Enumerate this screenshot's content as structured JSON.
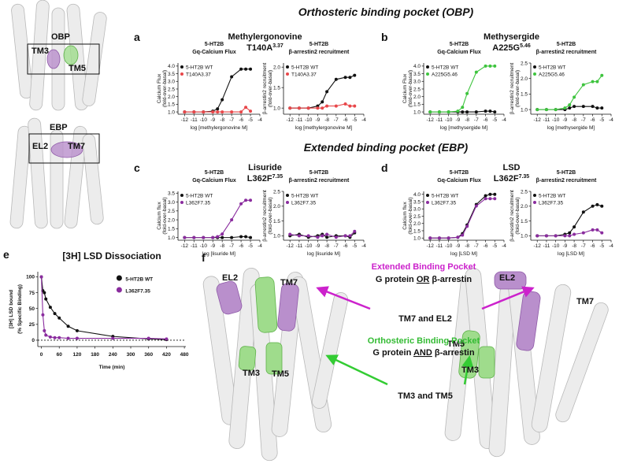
{
  "headings": [
    "Orthosteric binding pocket (OBP)",
    "Extended binding pocket (EBP)"
  ],
  "panel_letters": [
    "a",
    "b",
    "c",
    "d",
    "e",
    "f"
  ],
  "panels": [
    {
      "drug": "Methylergonovine",
      "mutant": {
        "base": "T140A",
        "sup": "3.37"
      }
    },
    {
      "drug": "Methysergide",
      "mutant": {
        "base": "A225G",
        "sup": "5.46"
      }
    },
    {
      "drug": "Lisuride",
      "mutant": {
        "base": "L362F",
        "sup": "7.35"
      }
    },
    {
      "drug": "LSD",
      "mutant": {
        "base": "L362F",
        "sup": "7.35"
      }
    }
  ],
  "overview": {
    "labels": [
      "OBP",
      "TM3",
      "TM5",
      "EBP",
      "EL2",
      "TM7"
    ]
  },
  "structures": {
    "left_labels": [
      "EL2",
      "TM7",
      "TM3",
      "TM5"
    ],
    "right_labels": [
      "EL2",
      "TM7",
      "TM5",
      "TM3"
    ],
    "ebp_title": "Extended Binding Pocket",
    "ebp_text": [
      "G protein ",
      "OR",
      " β-arrestin"
    ],
    "ebp_arrow": "TM7 and EL2",
    "obp_title": "Orthosteric Binding Pocket",
    "obp_text": [
      "G protein ",
      "AND",
      " β-arrestin"
    ],
    "obp_arrow": "TM3 and TM5"
  },
  "chart_data": [
    {
      "type": "line",
      "subtitle": [
        "5-HT2B",
        "Gq-Calcium Flux"
      ],
      "y_label": [
        "Calcium Flux",
        "(fold-over-basal)"
      ],
      "x_label": "log [methylergonovine M]",
      "x": [
        -12,
        -11,
        -10,
        -9,
        -8.5,
        -8,
        -7,
        -6,
        -5.5,
        -5
      ],
      "xlim": [
        -12.7,
        -4
      ],
      "xticks": [
        -12,
        -11,
        -10,
        -9,
        -8,
        -7,
        -6,
        -5,
        -4
      ],
      "ylim": [
        0.85,
        4.2
      ],
      "yticks": [
        {
          "value": 1,
          "label": "1.0"
        },
        1.5,
        {
          "value": 2,
          "label": "2.0"
        },
        2.5,
        {
          "value": 3,
          "label": "3.0"
        },
        3.5,
        {
          "value": 4,
          "label": "4.0"
        }
      ],
      "legend": "upper left",
      "series": [
        {
          "name": "5-HT2B WT",
          "color": "#111111",
          "values": [
            1.0,
            1.0,
            1.0,
            1.05,
            1.2,
            1.8,
            3.3,
            3.8,
            3.8,
            3.8
          ]
        },
        {
          "name": "T140A3.37",
          "color": "#e8474a",
          "values": [
            1.0,
            1.0,
            1.0,
            1.0,
            1.0,
            1.0,
            1.0,
            1.0,
            1.3,
            1.05
          ]
        }
      ]
    },
    {
      "type": "line",
      "subtitle": [
        "5-HT2B",
        "β-arrestin2 recruitment"
      ],
      "y_label": [
        "β-arrestin2 recruitment",
        "(fold-over-basal)"
      ],
      "x_label": "log [methylergonovine M]",
      "x": [
        -12,
        -11,
        -10,
        -9,
        -8.5,
        -8,
        -7,
        -6,
        -5.5,
        -5
      ],
      "xlim": [
        -12.7,
        -4
      ],
      "xticks": [
        -12,
        -11,
        -10,
        -9,
        -8,
        -7,
        -6,
        -5,
        -4
      ],
      "ylim": [
        0.85,
        2.1
      ],
      "yticks": [
        {
          "value": 1,
          "label": "1.0"
        },
        1.5,
        {
          "value": 2,
          "label": "2.0"
        }
      ],
      "legend": "upper left",
      "series": [
        {
          "name": "5-HT2B WT",
          "color": "#111111",
          "values": [
            1.0,
            1.0,
            1.0,
            1.05,
            1.15,
            1.4,
            1.7,
            1.75,
            1.75,
            1.8
          ]
        },
        {
          "name": "T140A3.37",
          "color": "#e8474a",
          "values": [
            1.0,
            1.0,
            1.0,
            1.0,
            1.0,
            1.05,
            1.05,
            1.1,
            1.05,
            1.05
          ]
        }
      ]
    },
    {
      "type": "line",
      "subtitle": [
        "5-HT2B",
        "Gq-Calcium Flux"
      ],
      "y_label": [
        "Calcium Flux",
        "(fold-over-basal)"
      ],
      "x_label": "log [methysergide M]",
      "x": [
        -12,
        -11,
        -10,
        -9,
        -8.5,
        -8,
        -7,
        -6,
        -5.5,
        -5
      ],
      "xlim": [
        -12.7,
        -4
      ],
      "xticks": [
        -12,
        -11,
        -10,
        -9,
        -8,
        -7,
        -6,
        -5,
        -4
      ],
      "ylim": [
        0.85,
        4.2
      ],
      "yticks": [
        {
          "value": 1,
          "label": "1.0"
        },
        1.5,
        {
          "value": 2,
          "label": "2.0"
        },
        2.5,
        {
          "value": 3,
          "label": "3.0"
        },
        3.5,
        {
          "value": 4,
          "label": "4.0"
        }
      ],
      "legend": "upper left",
      "series": [
        {
          "name": "5-HT2B WT",
          "color": "#111111",
          "values": [
            1.0,
            1.0,
            1.0,
            1.0,
            1.0,
            1.0,
            1.0,
            1.05,
            1.05,
            1.0
          ]
        },
        {
          "name": "A225G5.46",
          "color": "#3ec43e",
          "values": [
            1.0,
            1.0,
            1.0,
            1.05,
            1.3,
            2.2,
            3.6,
            4.0,
            4.0,
            4.0
          ]
        }
      ]
    },
    {
      "type": "line",
      "subtitle": [
        "5-HT2B",
        "β-arrestin2 recruitment"
      ],
      "y_label": [
        "β-arrestin2 recruitment",
        "(fold-over-basal)"
      ],
      "x_label": "log [methysergide M]",
      "x": [
        -12,
        -11,
        -10,
        -9,
        -8.5,
        -8,
        -7,
        -6,
        -5.5,
        -5
      ],
      "xlim": [
        -12.7,
        -4
      ],
      "xticks": [
        -12,
        -11,
        -10,
        -9,
        -8,
        -7,
        -6,
        -5,
        -4
      ],
      "ylim": [
        0.85,
        2.5
      ],
      "yticks": [
        {
          "value": 1,
          "label": "1.0"
        },
        1.5,
        {
          "value": 2,
          "label": "2.0"
        },
        2.5
      ],
      "legend": "upper left",
      "series": [
        {
          "name": "5-HT2B WT",
          "color": "#111111",
          "values": [
            1.0,
            1.0,
            1.0,
            1.0,
            1.05,
            1.1,
            1.1,
            1.1,
            1.05,
            1.05
          ]
        },
        {
          "name": "A225G5.46",
          "color": "#3ec43e",
          "values": [
            1.0,
            1.0,
            1.0,
            1.05,
            1.15,
            1.4,
            1.8,
            1.9,
            1.9,
            2.1
          ]
        }
      ]
    },
    {
      "type": "line",
      "subtitle": [
        "5-HT2B",
        "Gq-Calcium Flux"
      ],
      "y_label": [
        "Calcium flux",
        "(fold-over-basal)"
      ],
      "x_label": "log [lisuride M]",
      "x": [
        -12,
        -11,
        -10,
        -9,
        -8.5,
        -8,
        -7,
        -6,
        -5.5,
        -5
      ],
      "xlim": [
        -12.7,
        -4
      ],
      "xticks": [
        -12,
        -11,
        -10,
        -9,
        -8,
        -7,
        -6,
        -5,
        -4
      ],
      "ylim": [
        0.85,
        3.6
      ],
      "yticks": [
        {
          "value": 1,
          "label": "1.0"
        },
        1.5,
        {
          "value": 2,
          "label": "2.0"
        },
        2.5,
        {
          "value": 3,
          "label": "3.0"
        },
        3.5
      ],
      "legend": "upper left",
      "series": [
        {
          "name": "5-HT2B WT",
          "color": "#111111",
          "values": [
            1.0,
            1.0,
            1.0,
            1.0,
            1.0,
            1.0,
            1.0,
            1.05,
            1.05,
            1.0
          ]
        },
        {
          "name": "L362F7.35",
          "color": "#8a2c9e",
          "values": [
            1.0,
            1.0,
            1.0,
            1.0,
            1.05,
            1.2,
            2.0,
            2.9,
            3.1,
            3.1
          ]
        }
      ]
    },
    {
      "type": "line",
      "subtitle": [
        "5-HT2B",
        "β-arrestin2 recruitment"
      ],
      "y_label": [
        "β-arrestin2 recruitment",
        "(fold-over-basal)"
      ],
      "x_label": "log [lisuride M]",
      "x": [
        -12,
        -11,
        -10,
        -9,
        -8.5,
        -8,
        -7,
        -6,
        -5.5,
        -5
      ],
      "xlim": [
        -12.7,
        -4
      ],
      "xticks": [
        -12,
        -11,
        -10,
        -9,
        -8,
        -7,
        -6,
        -5,
        -4
      ],
      "ylim": [
        0.85,
        2.5
      ],
      "yticks": [
        {
          "value": 1,
          "label": "1.0"
        },
        1.5,
        {
          "value": 2,
          "label": "2.0"
        },
        2.5
      ],
      "legend": "upper left",
      "series": [
        {
          "name": "5-HT2B WT",
          "color": "#111111",
          "values": [
            1.0,
            1.05,
            0.95,
            1.0,
            1.05,
            0.95,
            1.0,
            1.0,
            0.95,
            1.1
          ]
        },
        {
          "name": "L362F7.35",
          "color": "#8a2c9e",
          "values": [
            1.05,
            1.0,
            1.0,
            0.95,
            1.0,
            1.05,
            0.95,
            1.0,
            1.0,
            1.15
          ]
        }
      ]
    },
    {
      "type": "line",
      "subtitle": [
        "5-HT2B",
        "Gq-Calcium Flux"
      ],
      "y_label": [
        "Calcium flux",
        "(fold-over-basal)"
      ],
      "x_label": "log [LSD M]",
      "x": [
        -12,
        -11,
        -10,
        -9,
        -8.5,
        -8,
        -7,
        -6,
        -5.5,
        -5
      ],
      "xlim": [
        -12.7,
        -4
      ],
      "xticks": [
        -12,
        -11,
        -10,
        -9,
        -8,
        -7,
        -6,
        -5,
        -4
      ],
      "ylim": [
        0.85,
        4.2
      ],
      "yticks": [
        {
          "value": 1,
          "label": "1.0"
        },
        1.5,
        {
          "value": 2,
          "label": "2.0"
        },
        2.5,
        {
          "value": 3,
          "label": "3.0"
        },
        3.5,
        {
          "value": 4,
          "label": "4.0"
        }
      ],
      "legend": "upper left",
      "series": [
        {
          "name": "5-HT2B WT",
          "color": "#111111",
          "values": [
            1.0,
            1.0,
            1.0,
            1.05,
            1.3,
            1.9,
            3.3,
            3.9,
            4.0,
            4.0
          ]
        },
        {
          "name": "L362F7.35",
          "color": "#8a2c9e",
          "values": [
            1.0,
            1.0,
            1.0,
            1.05,
            1.2,
            1.8,
            3.2,
            3.7,
            3.7,
            3.7
          ]
        }
      ]
    },
    {
      "type": "line",
      "subtitle": [
        "5-HT2B",
        "β-arrestin2 recruitment"
      ],
      "y_label": [
        "β-arrestin2 recruitment",
        "(fold-over-basal)"
      ],
      "x_label": "log [LSD M]",
      "x": [
        -12,
        -11,
        -10,
        -9,
        -8.5,
        -8,
        -7,
        -6,
        -5.5,
        -5
      ],
      "xlim": [
        -12.7,
        -4
      ],
      "xticks": [
        -12,
        -11,
        -10,
        -9,
        -8,
        -7,
        -6,
        -5,
        -4
      ],
      "ylim": [
        0.85,
        2.5
      ],
      "yticks": [
        {
          "value": 1,
          "label": "1.0"
        },
        1.5,
        {
          "value": 2,
          "label": "2.0"
        },
        2.5
      ],
      "legend": "upper left",
      "series": [
        {
          "name": "5-HT2B WT",
          "color": "#111111",
          "values": [
            1.0,
            1.0,
            1.0,
            1.05,
            1.1,
            1.3,
            1.8,
            2.0,
            2.05,
            2.0
          ]
        },
        {
          "name": "L362F7.35",
          "color": "#8a2c9e",
          "values": [
            1.0,
            1.0,
            1.0,
            1.0,
            1.0,
            1.05,
            1.1,
            1.2,
            1.2,
            1.1
          ]
        }
      ]
    },
    {
      "type": "line",
      "title": "[3H] LSD Dissociation",
      "y_label": [
        "[3H] LSD bound",
        "(% Specific Binding)"
      ],
      "x_label": "Time (min)",
      "x": [
        0,
        5,
        10,
        15,
        30,
        45,
        60,
        90,
        120,
        240,
        360,
        420
      ],
      "xlim": [
        -12,
        485
      ],
      "xticks": [
        0,
        60,
        120,
        180,
        240,
        300,
        360,
        420,
        480
      ],
      "ylim": [
        -10,
        108
      ],
      "yticks": [
        0,
        25,
        50,
        75,
        100
      ],
      "hline": 0,
      "legend": "upper right",
      "series": [
        {
          "name": "5-HT2B WT",
          "color": "#111111",
          "values": [
            100,
            78,
            75,
            65,
            52,
            42,
            35,
            22,
            15,
            6,
            2,
            1
          ]
        },
        {
          "name": "L362F7.35",
          "color": "#8a2c9e",
          "values": [
            100,
            40,
            15,
            8,
            5,
            4,
            4,
            3,
            3,
            3,
            3,
            2
          ]
        }
      ]
    }
  ]
}
